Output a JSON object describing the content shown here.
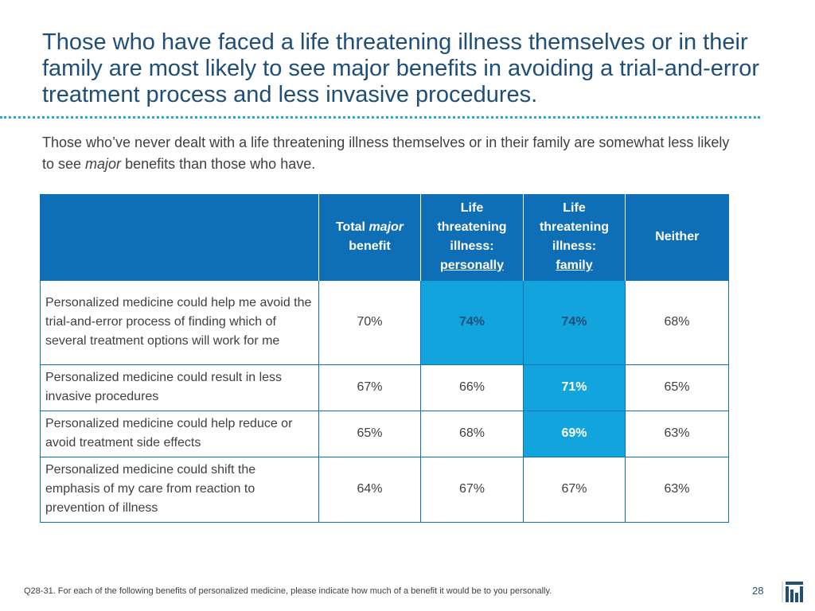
{
  "title": "Those who have faced a life threatening illness themselves or in their family are most likely to see major benefits in avoiding a trial-and-error treatment process and less invasive procedures.",
  "subtitle": {
    "before": "Those who’ve never dealt with a life threatening illness themselves or in their family are somewhat less likely to see ",
    "emphasis": "major",
    "after": " benefits than those who have."
  },
  "table": {
    "headers": {
      "total_prefix": "Total ",
      "total_emphasis": "major",
      "total_suffix": "benefit",
      "personal_line1": "Life",
      "personal_line2": "threatening",
      "personal_line3": "illness:",
      "personal_line4": "personally",
      "family_line1": "Life",
      "family_line2": "threatening",
      "family_line3": "illness:",
      "family_line4": "family",
      "neither": "Neither"
    },
    "rows": [
      {
        "label": "Personalized medicine could help me avoid the trial-and-error process of finding which of several treatment options will work for me",
        "total": "70%",
        "personal": "74%",
        "family": "74%",
        "neither": "68%"
      },
      {
        "label": "Personalized medicine could result in less invasive procedures",
        "total": "67%",
        "personal": "66%",
        "family": "71%",
        "neither": "65%"
      },
      {
        "label": "Personalized medicine could help reduce or avoid treatment side effects",
        "total": "65%",
        "personal": "68%",
        "family": "69%",
        "neither": "63%"
      },
      {
        "label": "Personalized medicine could shift the emphasis of my care from reaction to prevention of illness",
        "total": "64%",
        "personal": "67%",
        "family": "67%",
        "neither": "63%"
      }
    ]
  },
  "footnote": "Q28-31. For each of the following benefits of personalized medicine, please indicate how much of a benefit it would be to you personally.",
  "page_number": "28",
  "colors": {
    "header_bg": "#0e6fb6",
    "highlight": "#12a4dc",
    "title": "#1f4e79"
  }
}
